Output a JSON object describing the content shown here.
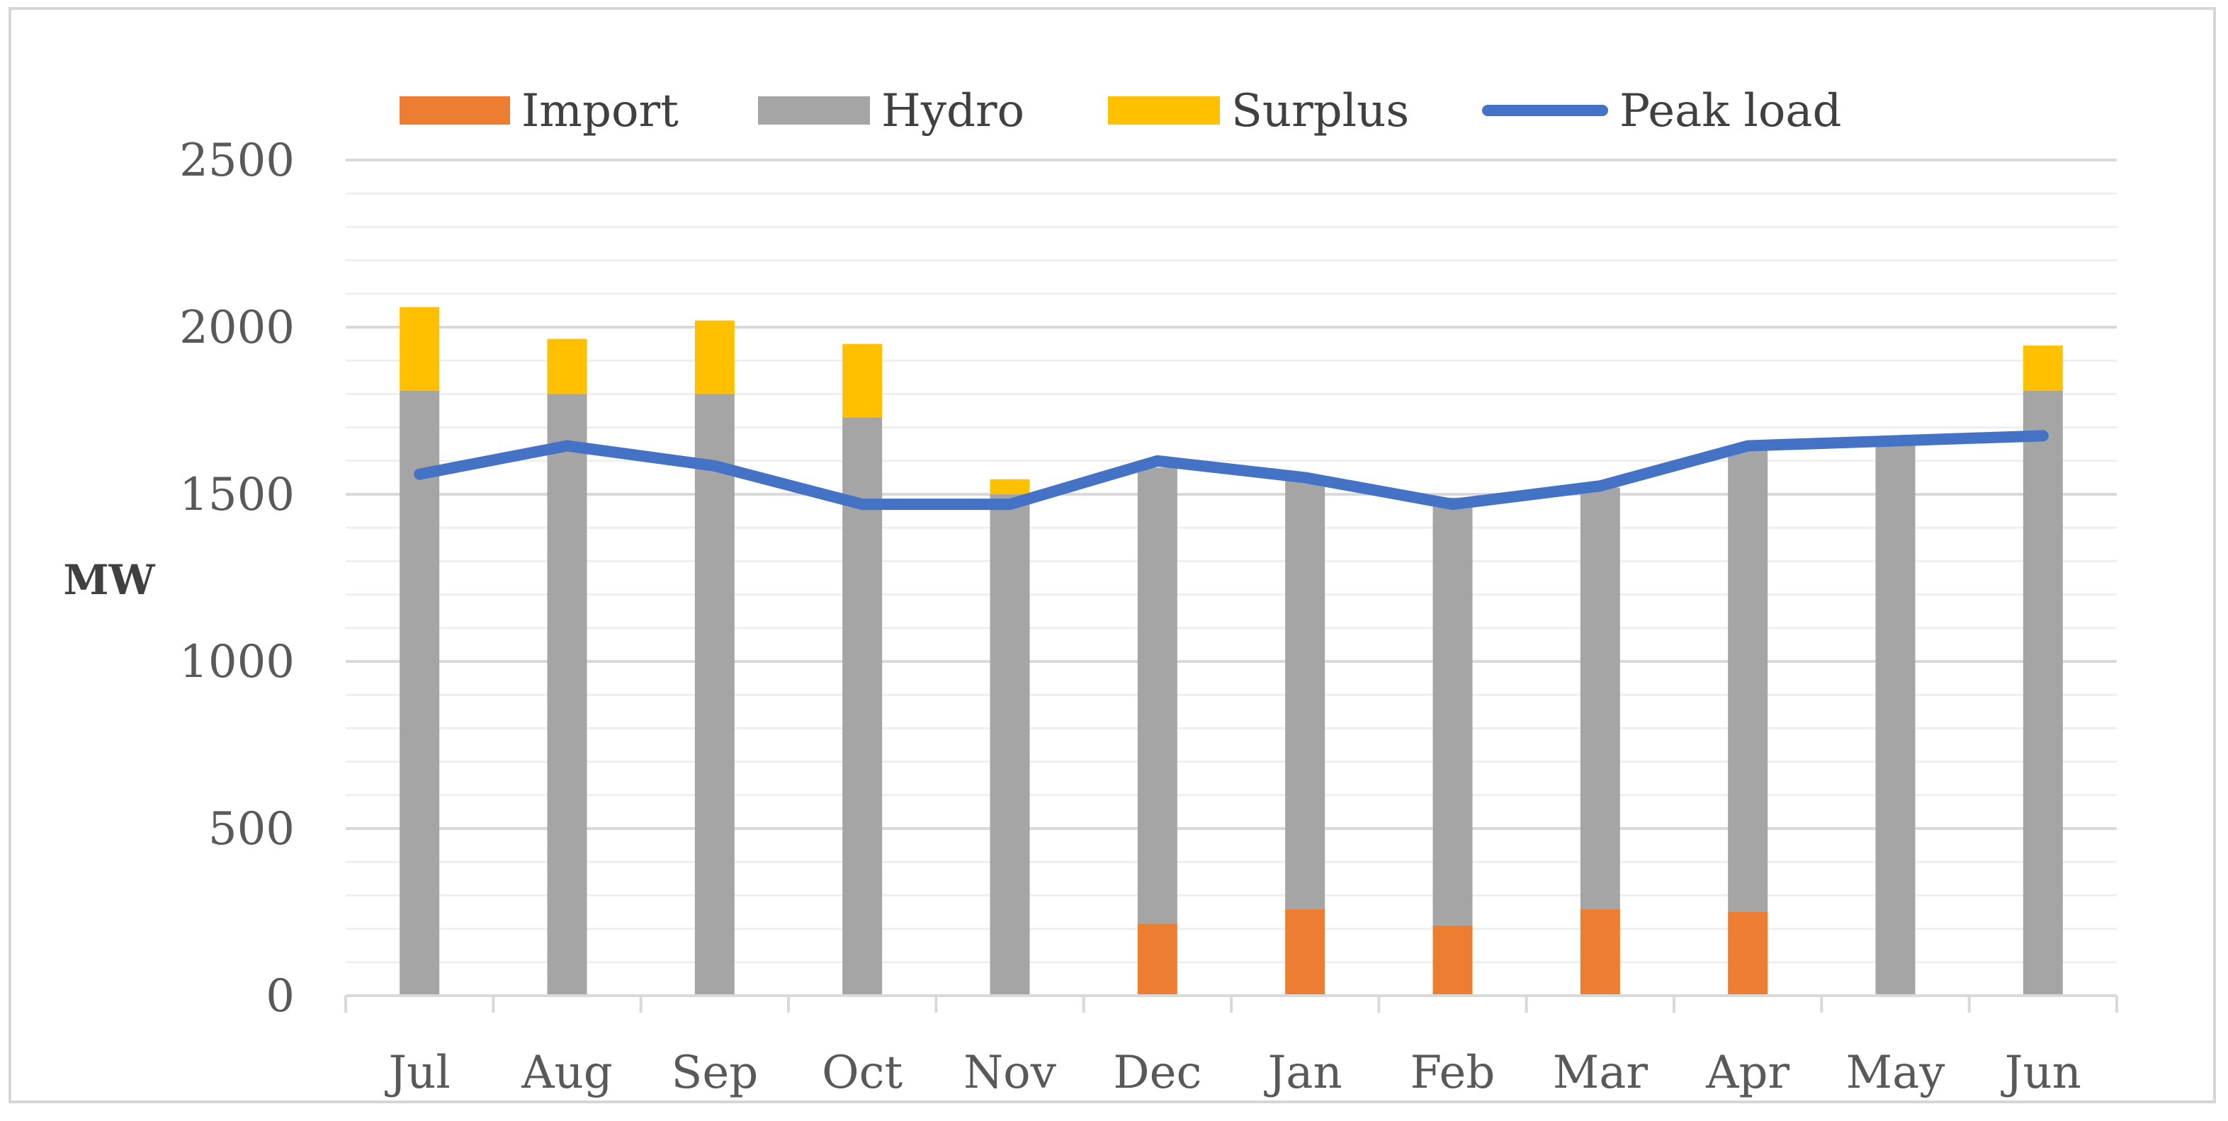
{
  "chart_data": {
    "type": "bar",
    "stacked": true,
    "title": "",
    "xlabel": "",
    "ylabel": "MW",
    "ylim": [
      0,
      2500
    ],
    "yticks": [
      0,
      500,
      1000,
      1500,
      2000,
      2500
    ],
    "minor_grid_step": 100,
    "grid": true,
    "legend_position": "top",
    "categories": [
      "Jul",
      "Aug",
      "Sep",
      "Oct",
      "Nov",
      "Dec",
      "Jan",
      "Feb",
      "Mar",
      "Apr",
      "May",
      "Jun"
    ],
    "series": [
      {
        "name": "Import",
        "kind": "bar",
        "color": "#ED7D31",
        "values": [
          0,
          0,
          0,
          0,
          0,
          215,
          260,
          210,
          260,
          250,
          5,
          0
        ]
      },
      {
        "name": "Hydro",
        "kind": "bar",
        "color": "#A5A5A5",
        "values": [
          1810,
          1800,
          1800,
          1730,
          1500,
          1365,
          1295,
          1280,
          1260,
          1390,
          1645,
          1810
        ]
      },
      {
        "name": "Surplus",
        "kind": "bar",
        "color": "#FFC000",
        "values": [
          250,
          165,
          220,
          220,
          45,
          0,
          0,
          0,
          0,
          0,
          0,
          135
        ]
      },
      {
        "name": "Peak load",
        "kind": "line",
        "color": "#4472C4",
        "values": [
          1560,
          1645,
          1585,
          1470,
          1470,
          1600,
          1550,
          1470,
          1525,
          1645,
          1660,
          1675
        ]
      }
    ]
  }
}
